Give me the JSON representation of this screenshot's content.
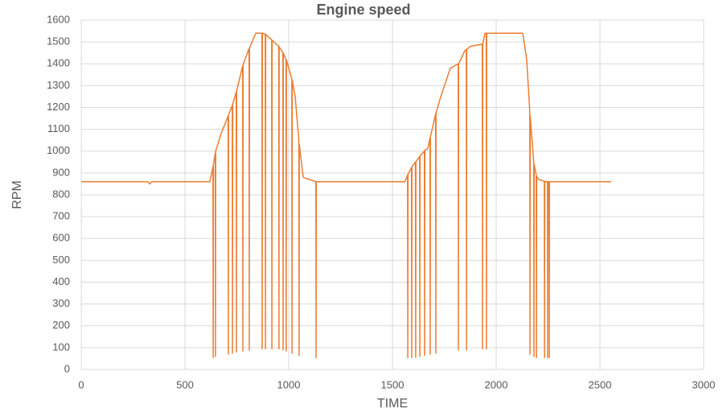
{
  "chart_data": {
    "type": "line",
    "title": "Engine speed",
    "x_label": "TIME",
    "y_label": "RPM",
    "x": [
      0,
      320,
      330,
      340,
      620,
      635,
      636,
      637,
      646,
      647,
      648,
      674,
      708,
      709,
      710,
      728,
      729,
      730,
      747,
      748,
      749,
      778,
      779,
      780,
      809,
      810,
      811,
      841,
      871,
      872,
      873,
      887,
      888,
      889,
      918,
      919,
      920,
      952,
      953,
      954,
      972,
      973,
      974,
      987,
      988,
      989,
      1015,
      1016,
      1017,
      1031,
      1049,
      1050,
      1051,
      1070,
      1131,
      1132,
      1133,
      1560,
      1573,
      1574,
      1575,
      1592,
      1593,
      1594,
      1611,
      1612,
      1613,
      1631,
      1632,
      1633,
      1654,
      1655,
      1656,
      1670,
      1681,
      1682,
      1683,
      1708,
      1709,
      1710,
      1733,
      1779,
      1817,
      1818,
      1819,
      1849,
      1856,
      1857,
      1858,
      1876,
      1933,
      1934,
      1935,
      1946,
      1952,
      1953,
      1954,
      2128,
      2147,
      2162,
      2163,
      2164,
      2181,
      2182,
      2183,
      2193,
      2194,
      2195,
      2205,
      2232,
      2233,
      2234,
      2247,
      2248,
      2249,
      2255,
      2256,
      2257,
      2554
    ],
    "values": [
      860,
      860,
      850,
      860,
      860,
      930,
      55,
      940,
      990,
      60,
      1000,
      1080,
      1160,
      70,
      1165,
      1210,
      75,
      1215,
      1270,
      80,
      1275,
      1390,
      85,
      1395,
      1470,
      90,
      1472,
      1540,
      1540,
      95,
      1540,
      1535,
      95,
      1535,
      1510,
      95,
      1508,
      1480,
      95,
      1478,
      1450,
      90,
      1448,
      1420,
      85,
      1418,
      1330,
      75,
      1325,
      1250,
      1050,
      65,
      1030,
      880,
      860,
      55,
      860,
      860,
      890,
      55,
      895,
      925,
      55,
      928,
      950,
      55,
      952,
      975,
      60,
      978,
      1000,
      65,
      1005,
      1010,
      1060,
      70,
      1065,
      1170,
      75,
      1175,
      1250,
      1380,
      1400,
      90,
      1400,
      1460,
      1465,
      90,
      1466,
      1480,
      1490,
      95,
      1490,
      1540,
      1540,
      95,
      1540,
      1540,
      1420,
      1180,
      70,
      1160,
      950,
      60,
      940,
      890,
      55,
      885,
      870,
      862,
      55,
      862,
      860,
      55,
      860,
      860,
      55,
      860,
      860
    ],
    "color": "#ed7d31",
    "xlim": [
      0,
      3000
    ],
    "xticks": [
      0,
      500,
      1000,
      1500,
      2000,
      2500,
      3000
    ],
    "ylim": [
      0,
      1600
    ],
    "yticks": [
      0,
      100,
      200,
      300,
      400,
      500,
      600,
      700,
      800,
      900,
      1000,
      1100,
      1200,
      1300,
      1400,
      1500,
      1600
    ],
    "grid": true
  }
}
